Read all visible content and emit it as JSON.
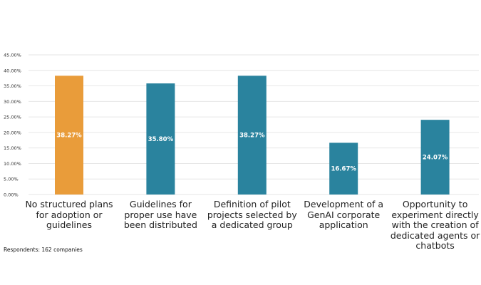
{
  "chart_data": {
    "type": "bar",
    "title": "",
    "xlabel": "",
    "ylabel": "",
    "categories": [
      "No structured plans for adoption or guidelines",
      "Guidelines for proper use have been distributed",
      "Definition of pilot projects selected by a dedicated group",
      "Development of a GenAI corporate application",
      "Opportunity to experiment directly with the creation of dedicated agents or chatbots"
    ],
    "values": [
      38.27,
      35.8,
      38.27,
      16.67,
      24.07
    ],
    "value_labels": [
      "38.27%",
      "35.80%",
      "38.27%",
      "16.67%",
      "24.07%"
    ],
    "bar_colors": [
      "#E99C3A",
      "#2A839E",
      "#2A839E",
      "#2A839E",
      "#2A839E"
    ],
    "ylim": [
      0,
      45
    ],
    "yticks": [
      0,
      5,
      10,
      15,
      20,
      25,
      30,
      35,
      40,
      45
    ],
    "ytick_labels": [
      "0.00%",
      "5.00%",
      "10.00%",
      "15.00%",
      "20.00%",
      "25.00%",
      "30.00%",
      "35.00%",
      "40.00%",
      "45.00%"
    ],
    "grid": true,
    "legend": "none",
    "footnote": "Respondents: 162 companies"
  }
}
